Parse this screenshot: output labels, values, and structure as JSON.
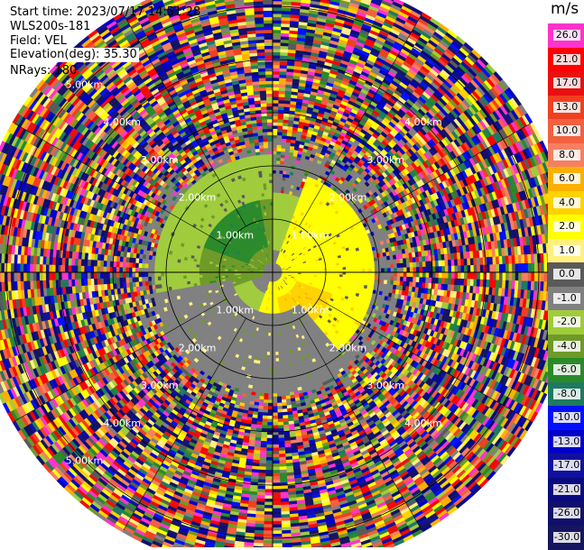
{
  "header": {
    "start_label": "Start time:",
    "start_time": "2023/07/17 14:51:28",
    "instrument": "WLS200s-181",
    "field_label": "Field:",
    "field": "VEL",
    "elevation_label": "Elevation(deg):",
    "elevation": "35.30",
    "nrays_label": "NRays:",
    "nrays": "180"
  },
  "chart_data": {
    "type": "heatmap",
    "projection": "polar-ppi",
    "field": "VEL",
    "units": "m/s",
    "n_rays": 180,
    "elevation_deg": 35.3,
    "range_km_max": 5.6,
    "range_rings_km": [
      1,
      2,
      3,
      4,
      5
    ],
    "range_ring_labels": [
      "1.00km",
      "2.00km",
      "3.00km",
      "4.00km",
      "5.00km"
    ],
    "spoke_angles_deg": [
      0,
      30,
      60,
      90,
      120,
      150,
      180,
      210,
      240,
      270,
      300,
      330
    ],
    "colorbar": {
      "title": "m/s",
      "ticks": [
        "26.0",
        "21.0",
        "17.0",
        "13.0",
        "10.0",
        "8.0",
        "6.0",
        "4.0",
        "2.0",
        "1.0",
        "0.0",
        "-1.0",
        "-2.0",
        "-4.0",
        "-6.0",
        "-8.0",
        "-10.0",
        "-13.0",
        "-17.0",
        "-21.0",
        "-26.0",
        "-30.0"
      ],
      "colors": [
        "#ff33cc",
        "#ff0000",
        "#e81010",
        "#f04020",
        "#f26040",
        "#f58060",
        "#fbb000",
        "#ffd200",
        "#ffff00",
        "#fff080",
        "#5a5a5a",
        "#808080",
        "#a0cc3c",
        "#6e9a28",
        "#2a8a2a",
        "#1e7a60",
        "#0010ff",
        "#0000c8",
        "#1010a0",
        "#0a0a80",
        "#10106a",
        "#151560"
      ]
    },
    "regions": [
      {
        "name": "green-inbound",
        "from_deg": 250,
        "to_deg": 360,
        "range_km": [
          0.2,
          1.6
        ],
        "value": -4.0
      },
      {
        "name": "dark-green-core",
        "from_deg": 290,
        "to_deg": 350,
        "range_km": [
          0.5,
          1.5
        ],
        "value": -6.0
      },
      {
        "name": "light-green-ring",
        "from_deg": 200,
        "to_deg": 360,
        "range_km": [
          1.4,
          2.2
        ],
        "value": -2.0
      },
      {
        "name": "yellow-outbound",
        "from_deg": 20,
        "to_deg": 200,
        "range_km": [
          0.2,
          1.9
        ],
        "value": 2.0
      },
      {
        "name": "orange-patch",
        "from_deg": 110,
        "to_deg": 170,
        "range_km": [
          0.5,
          1.2
        ],
        "value": 4.0
      },
      {
        "name": "grey-ring",
        "from_deg": 140,
        "to_deg": 260,
        "range_km": [
          0.8,
          2.4
        ],
        "value": -1.0
      },
      {
        "name": "noise-outer",
        "range_km": [
          2.3,
          5.6
        ],
        "value": "noise"
      }
    ]
  }
}
